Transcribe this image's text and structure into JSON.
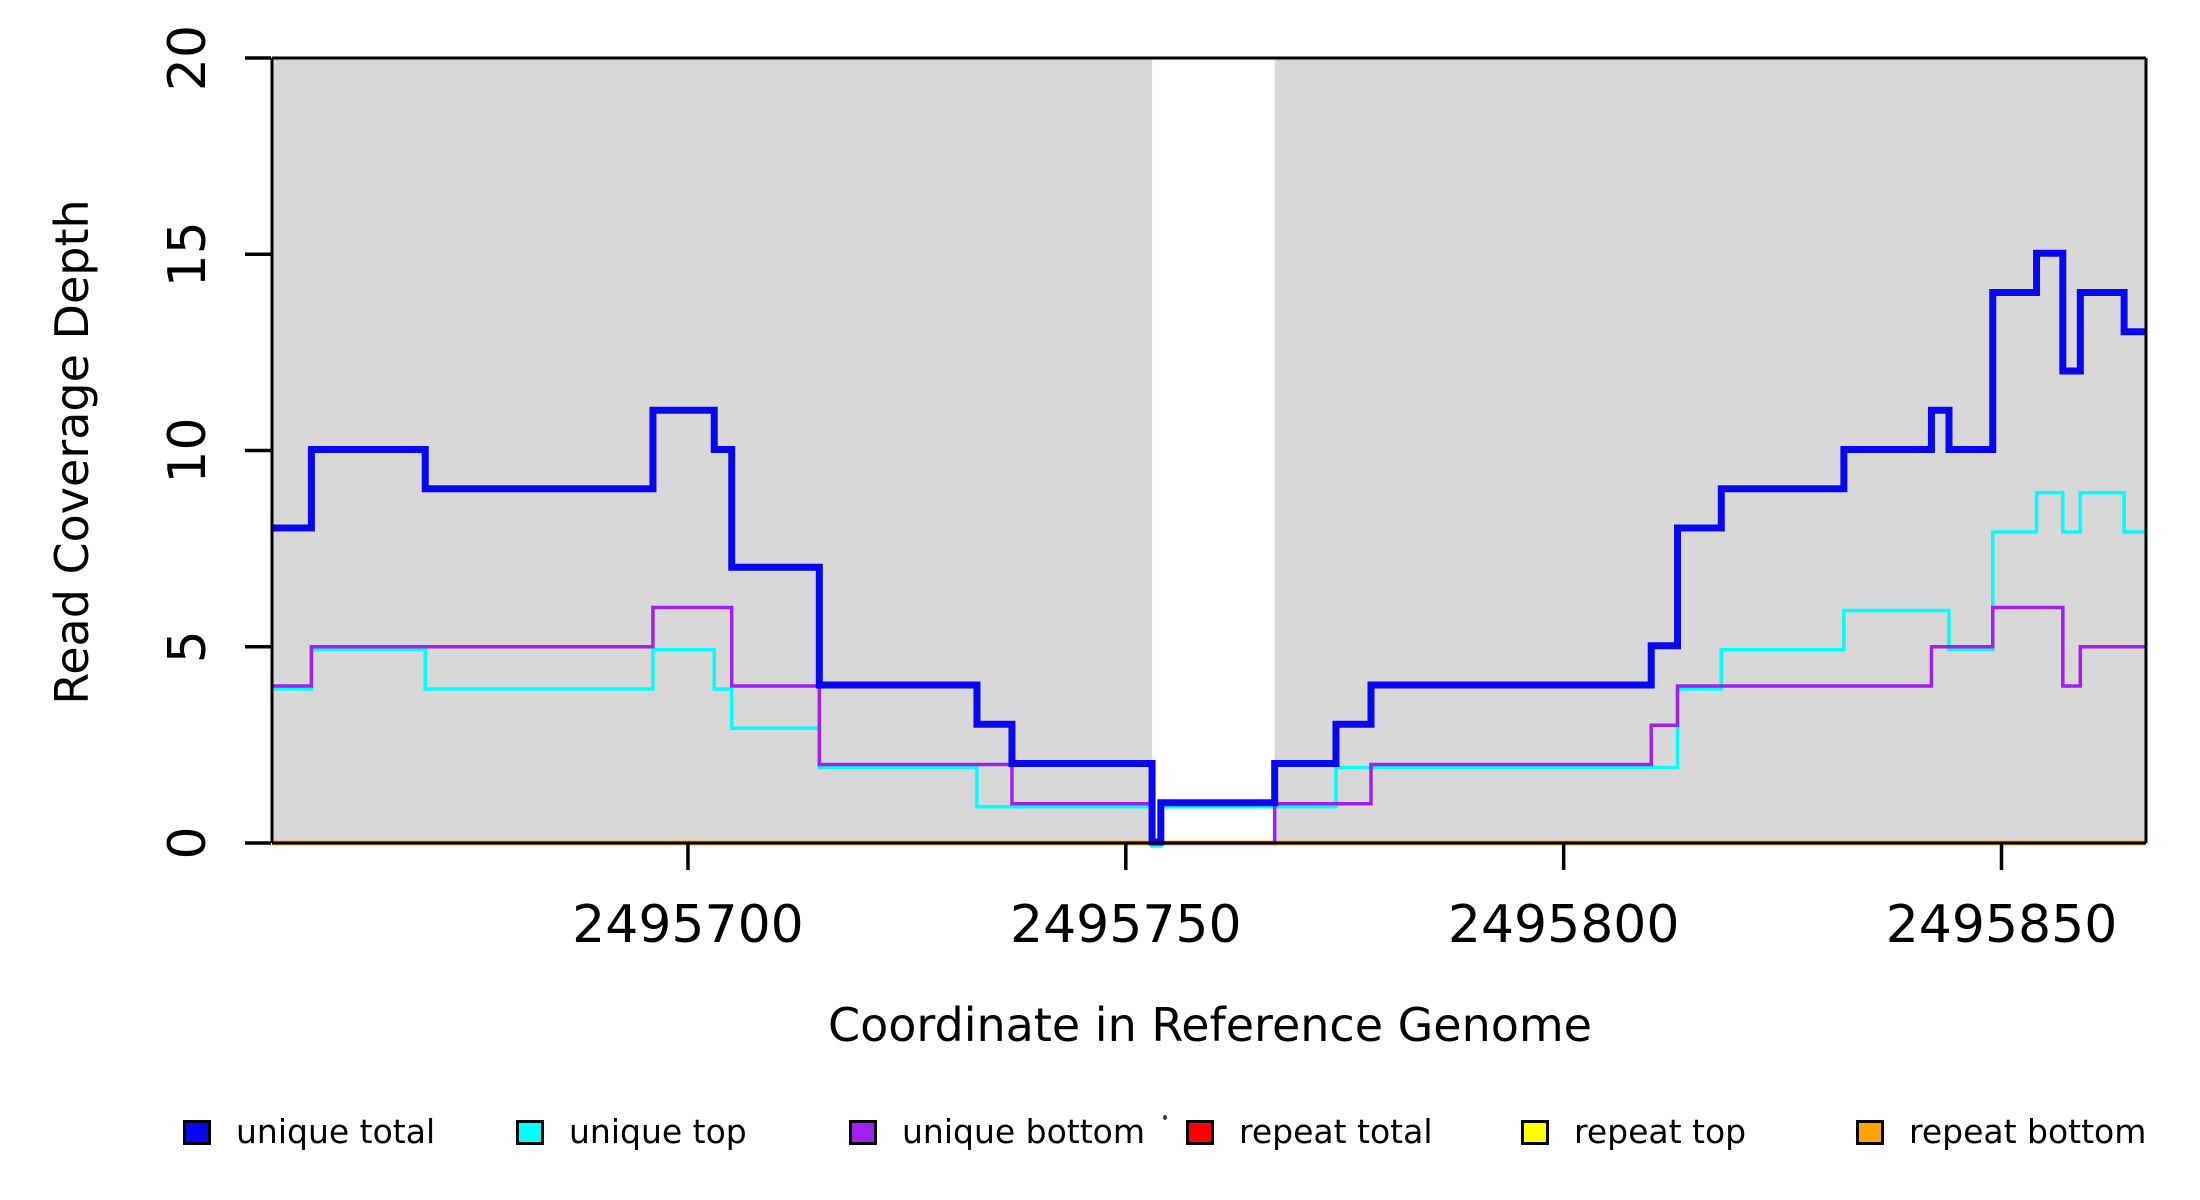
{
  "chart_data": {
    "type": "line",
    "subtype": "step-post",
    "title": "",
    "xlabel": "Coordinate in Reference Genome",
    "ylabel": "Read Coverage Depth",
    "xlim": [
      2495652.5,
      2495866.5
    ],
    "ylim": [
      0,
      20
    ],
    "xticks": [
      2495700,
      2495750,
      2495800,
      2495850
    ],
    "yticks": [
      0,
      5,
      10,
      15,
      20
    ],
    "grid": false,
    "legend_position": "bottom",
    "plot_background": "#ffffff",
    "shaded_color": "#d8d8d8",
    "axis_color": "#000000",
    "shaded_regions": [
      [
        2495652.5,
        2495753
      ],
      [
        2495767,
        2495866.5
      ]
    ],
    "gap_region": [
      2495753,
      2495767
    ],
    "series": [
      {
        "name": "unique total",
        "color": "#0808f0",
        "line_width": 7,
        "start_value": 8,
        "steps": [
          [
            2495657,
            10
          ],
          [
            2495670,
            9
          ],
          [
            2495696,
            11
          ],
          [
            2495703,
            10
          ],
          [
            2495705,
            7
          ],
          [
            2495715,
            4
          ],
          [
            2495733,
            3
          ],
          [
            2495737,
            2
          ],
          [
            2495753,
            0
          ],
          [
            2495754,
            1
          ],
          [
            2495767,
            2
          ],
          [
            2495774,
            3
          ],
          [
            2495778,
            4
          ],
          [
            2495810,
            5
          ],
          [
            2495813,
            8
          ],
          [
            2495818,
            9
          ],
          [
            2495832,
            10
          ],
          [
            2495842,
            11
          ],
          [
            2495844,
            10
          ],
          [
            2495849,
            14
          ],
          [
            2495854,
            15
          ],
          [
            2495857,
            12
          ],
          [
            2495859,
            14
          ],
          [
            2495864,
            13
          ]
        ]
      },
      {
        "name": "unique top",
        "color": "#00ffff",
        "line_width": 3.5,
        "start_value": 4,
        "steps": [
          [
            2495657,
            5
          ],
          [
            2495670,
            4
          ],
          [
            2495696,
            5
          ],
          [
            2495703,
            4
          ],
          [
            2495705,
            3
          ],
          [
            2495715,
            2
          ],
          [
            2495733,
            1
          ],
          [
            2495753,
            0
          ],
          [
            2495754,
            1
          ],
          [
            2495774,
            2
          ],
          [
            2495813,
            4
          ],
          [
            2495818,
            5
          ],
          [
            2495832,
            6
          ],
          [
            2495844,
            5
          ],
          [
            2495849,
            8
          ],
          [
            2495854,
            9
          ],
          [
            2495857,
            8
          ],
          [
            2495859,
            9
          ],
          [
            2495864,
            8
          ]
        ]
      },
      {
        "name": "unique bottom",
        "color": "#a020f0",
        "line_width": 3.5,
        "start_value": 4,
        "steps": [
          [
            2495657,
            5
          ],
          [
            2495696,
            6
          ],
          [
            2495705,
            4
          ],
          [
            2495715,
            2
          ],
          [
            2495737,
            1
          ],
          [
            2495753,
            0
          ],
          [
            2495767,
            1
          ],
          [
            2495778,
            2
          ],
          [
            2495810,
            3
          ],
          [
            2495813,
            4
          ],
          [
            2495842,
            5
          ],
          [
            2495849,
            6
          ],
          [
            2495857,
            4
          ],
          [
            2495859,
            5
          ]
        ]
      },
      {
        "name": "repeat total",
        "color": "#ff0000",
        "line_width": 4.5,
        "start_value": 0,
        "steps": []
      },
      {
        "name": "repeat top",
        "color": "#ffff00",
        "line_width": 4.5,
        "start_value": 0,
        "steps": []
      },
      {
        "name": "repeat bottom",
        "color": "#ffa500",
        "line_width": 4.5,
        "start_value": 0,
        "steps": []
      }
    ]
  }
}
